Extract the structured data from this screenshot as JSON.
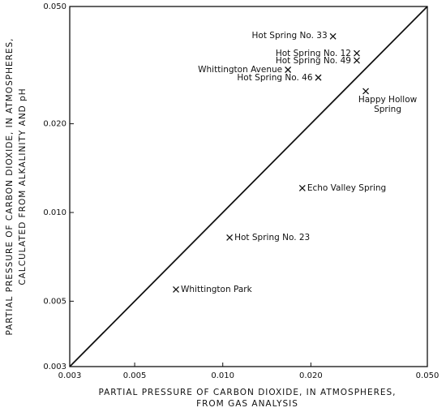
{
  "chart_data": {
    "type": "scatter",
    "x_label": [
      "PARTIAL PRESSURE OF CARBON DIOXIDE, IN ATMOSPHERES,",
      "FROM GAS ANALYSIS"
    ],
    "y_label": [
      "PARTIAL PRESSURE OF CARBON DIOXIDE, IN ATMOSPHERES,",
      "CALCULATED FROM ALKALINITY AND pH"
    ],
    "xscale": "log",
    "yscale": "log",
    "xlim": [
      0.003,
      0.05
    ],
    "ylim": [
      0.003,
      0.05
    ],
    "xticks": [
      0.003,
      0.005,
      {
        "value": 0.01,
        "label": "0.010"
      },
      {
        "value": 0.02,
        "label": "0.020"
      },
      {
        "value": 0.05,
        "label": "0.050"
      }
    ],
    "yticks": [
      0.003,
      0.005,
      {
        "value": 0.01,
        "label": "0.010"
      },
      {
        "value": 0.02,
        "label": "0.020"
      },
      {
        "value": 0.05,
        "label": "0.050"
      }
    ],
    "color": "#111111",
    "labels": [
      "Hot Spring No. 33",
      "Hot Spring No. 12",
      "Hot Spring No. 49",
      "Whittington Avenue",
      "Hot Spring No. 46",
      "Happy Hollow Spring",
      "Echo Valley Spring",
      "Hot Spring No. 23",
      "Whittington Park"
    ],
    "x": [
      0.0238,
      0.0287,
      0.0287,
      0.0167,
      0.0212,
      0.0308,
      0.0187,
      0.01055,
      0.00692
    ],
    "y": [
      0.0396,
      0.0347,
      0.0328,
      0.0305,
      0.0287,
      0.0258,
      0.0121,
      0.00822,
      0.00548
    ]
  }
}
